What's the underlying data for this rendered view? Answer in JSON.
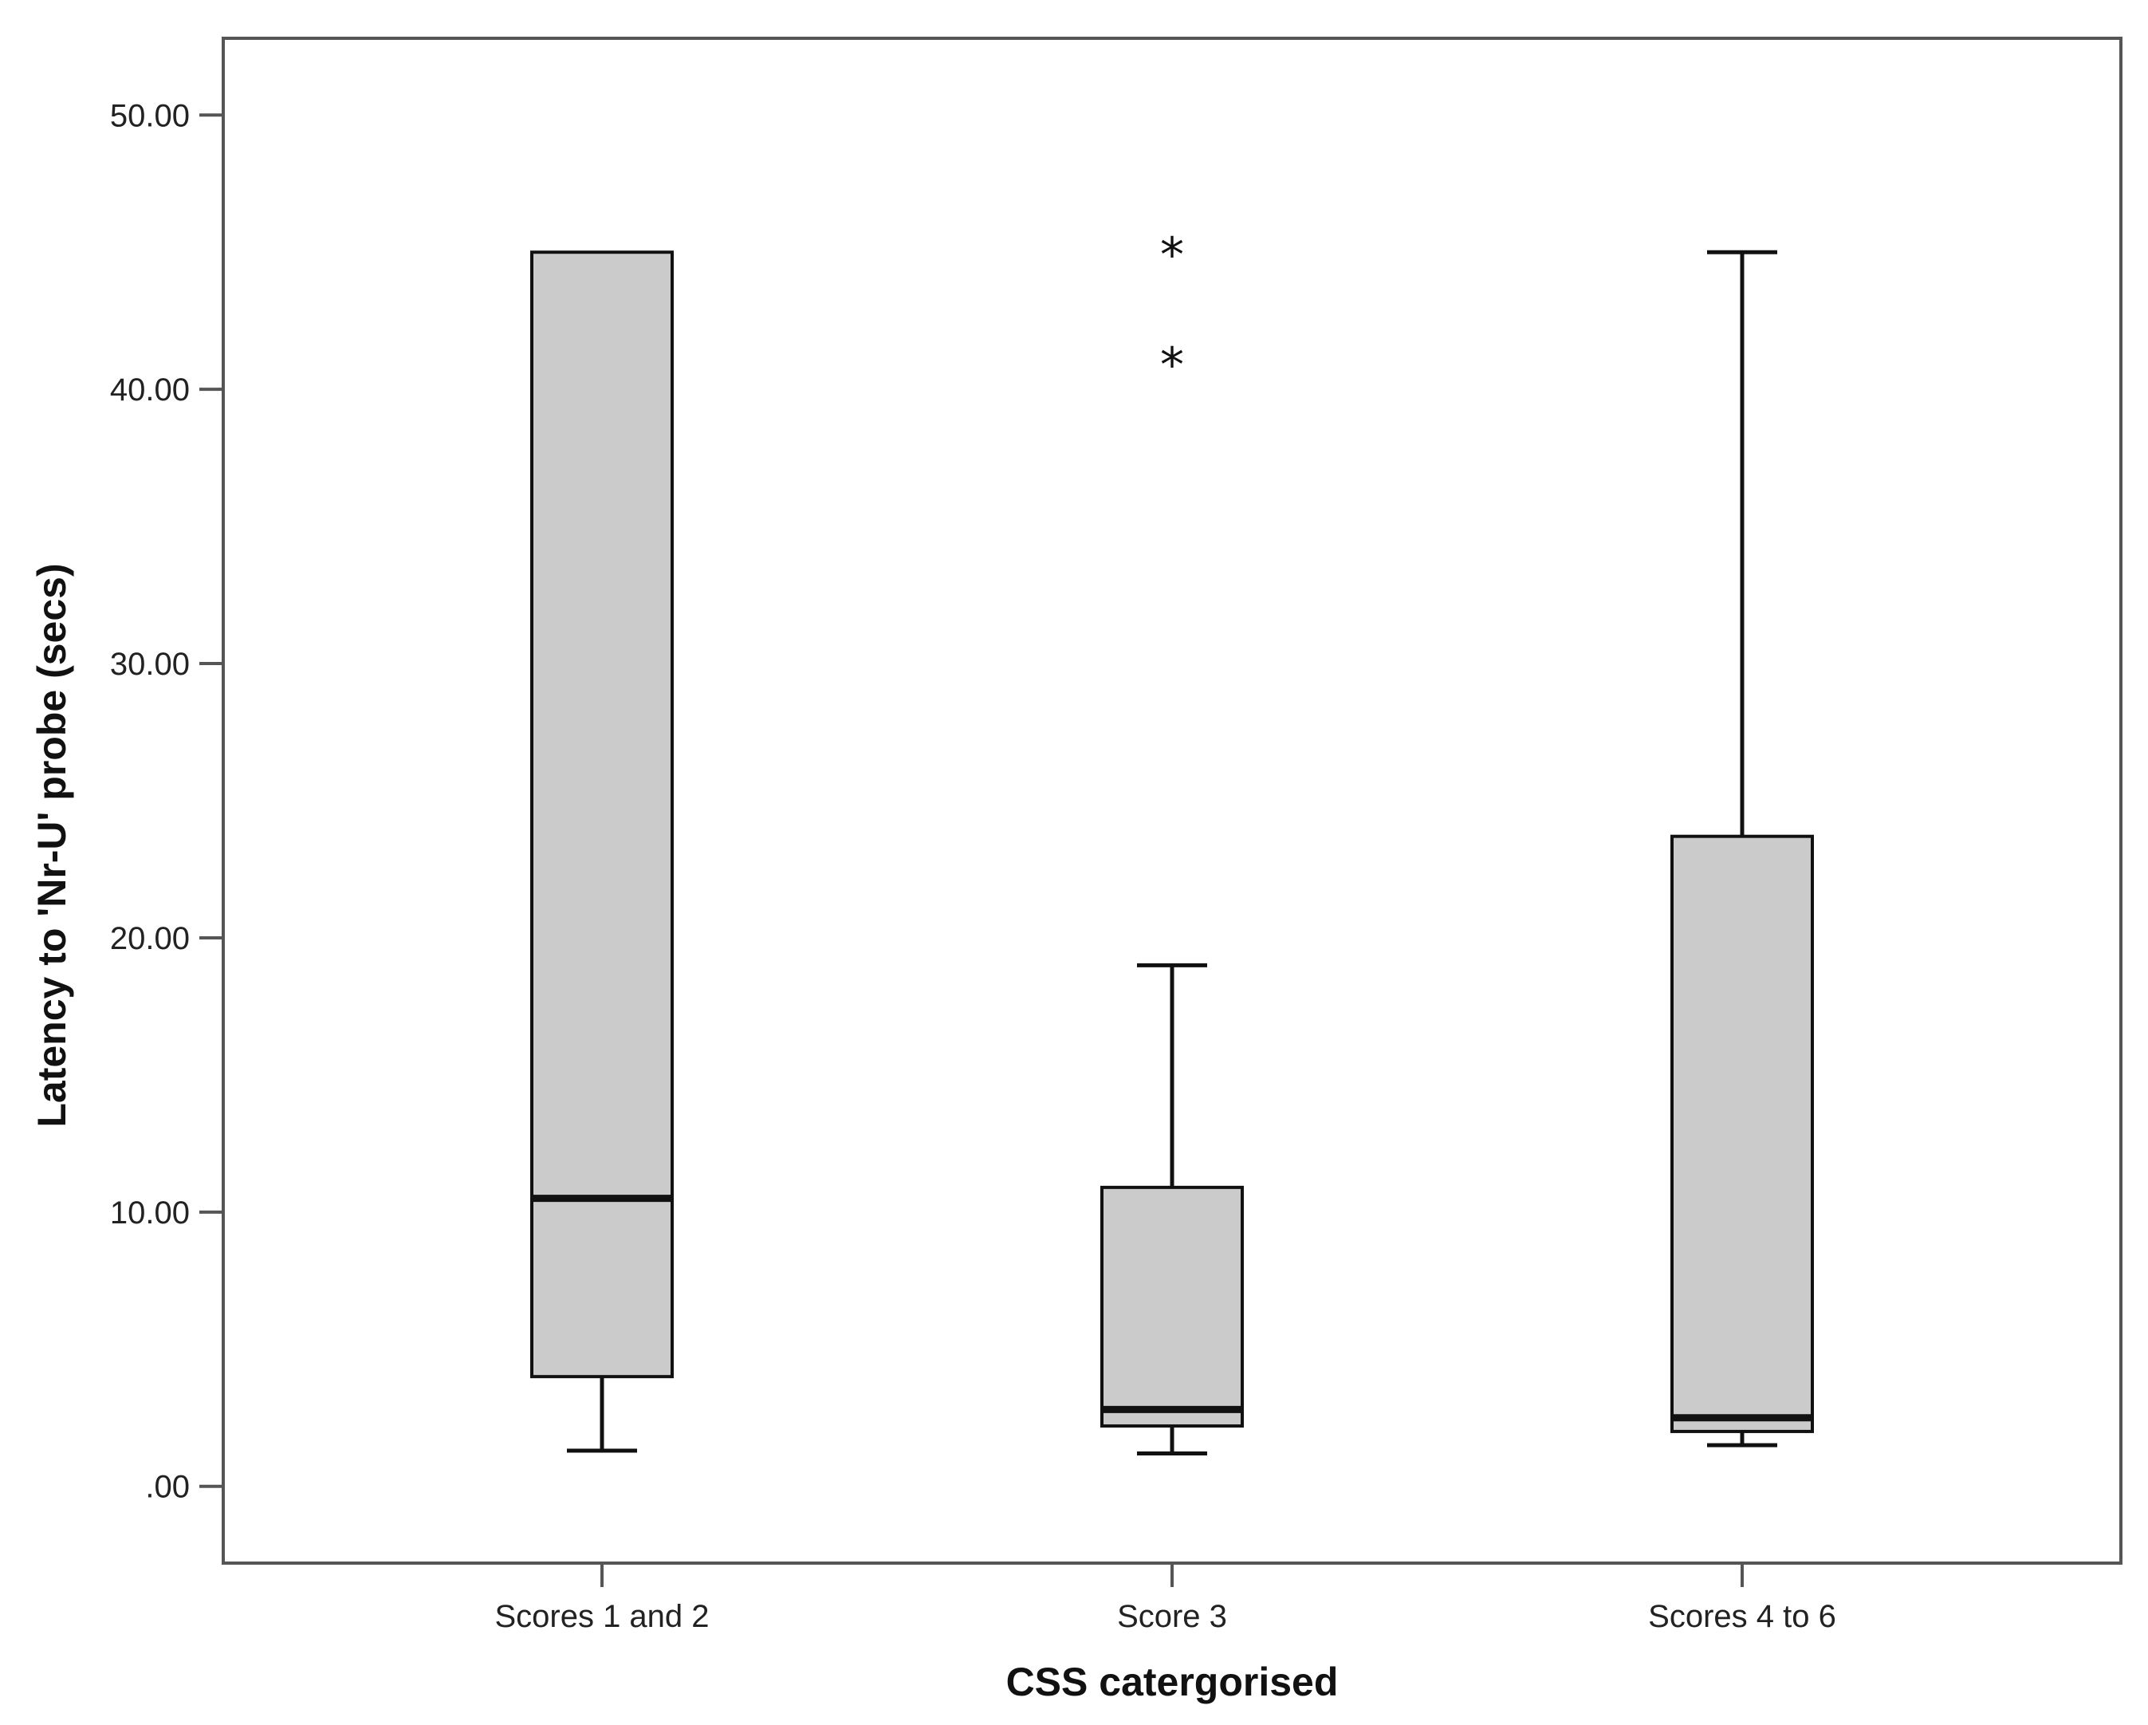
{
  "chart_data": {
    "type": "boxplot",
    "title": "",
    "xlabel": "CSS catergorised",
    "ylabel": "Latency to 'Nr-U' probe (secs)",
    "ylim": [
      -2.8,
      52.8
    ],
    "yticks": [
      0,
      10,
      20,
      30,
      40,
      50
    ],
    "ytick_labels": [
      ".00",
      "10.00",
      "20.00",
      "30.00",
      "40.00",
      "50.00"
    ],
    "grid": false,
    "legend": "none",
    "categories": [
      "Scores 1 and 2",
      "Score 3",
      "Scores 4 to 6"
    ],
    "boxes": [
      {
        "category": "Scores 1 and 2",
        "whisker_low": 1.3,
        "q1": 4.0,
        "median": 10.5,
        "q3": 45.0,
        "whisker_high": 45.0,
        "outliers": []
      },
      {
        "category": "Score 3",
        "whisker_low": 1.2,
        "q1": 2.2,
        "median": 2.8,
        "q3": 10.9,
        "whisker_high": 19.0,
        "outliers": [
          45.0,
          41.0
        ]
      },
      {
        "category": "Scores 4 to 6",
        "whisker_low": 1.5,
        "q1": 2.0,
        "median": 2.5,
        "q3": 23.7,
        "whisker_high": 45.0,
        "outliers": []
      }
    ],
    "outlier_symbol": "*",
    "colors": {
      "box_fill": "#cbcbcb",
      "stroke": "#111111",
      "frame": "#555555",
      "background": "#ffffff"
    }
  }
}
